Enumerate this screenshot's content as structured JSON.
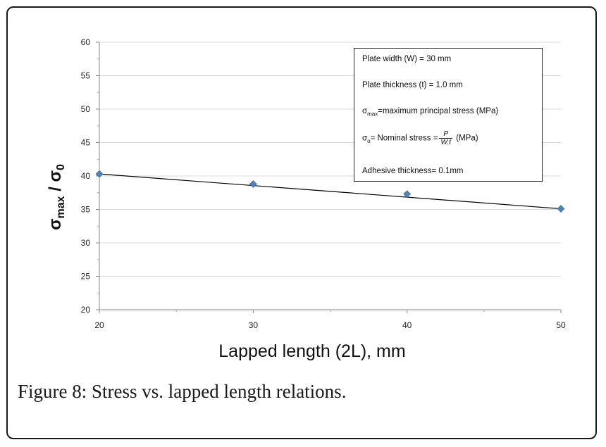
{
  "chart_data": {
    "type": "line",
    "x": [
      20,
      30,
      40,
      50
    ],
    "series": [
      {
        "name": "σmax / σ0",
        "values": [
          40.3,
          38.8,
          37.3,
          35.1
        ]
      }
    ],
    "xlabel": "Lapped length (2L), mm",
    "ylabel": {
      "base": "σ",
      "sub": "max",
      "sep": " / ",
      "base2": "σ",
      "sub2": "0"
    },
    "xlim": [
      20,
      50
    ],
    "ylim": [
      20,
      60
    ],
    "xticks": [
      "20",
      "30",
      "40",
      "50"
    ],
    "yticks": [
      "20",
      "25",
      "30",
      "35",
      "40",
      "45",
      "50",
      "55",
      "60"
    ],
    "grid": "horizontal",
    "marker": "diamond",
    "line_color": "#000000",
    "marker_color": "#4f81bd"
  },
  "legend": {
    "plate_width": "Plate width (W) = 30 mm",
    "plate_thickness": "Plate thickness (t) = 1.0 mm",
    "smax_sym": "σ",
    "smax_sub": "max",
    "smax_text": "=maximum principal stress (MPa)",
    "so_sym": "σ",
    "so_sub": "o",
    "so_text": "= Nominal stress =",
    "frac_num": "P",
    "frac_den": "W.t",
    "so_unit": "(MPa)",
    "adhesive": "Adhesive thickness= 0.1mm"
  },
  "caption": {
    "label": "Figure 8:",
    "text": "Stress vs. lapped length relations."
  }
}
